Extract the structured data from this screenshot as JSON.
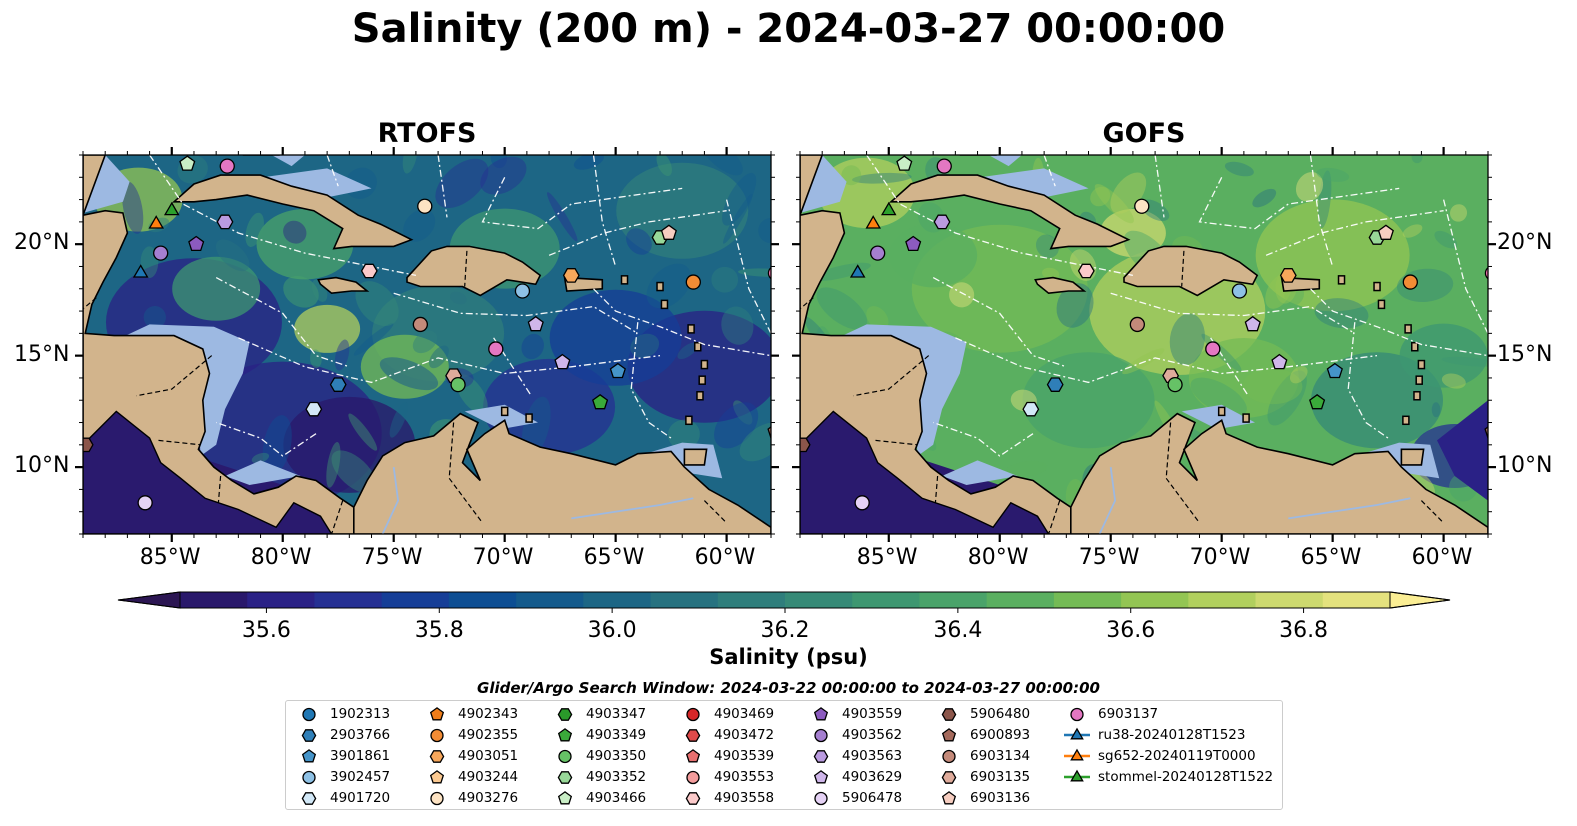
{
  "figure": {
    "title": "Salinity (200 m) - 2024-03-27 00:00:00",
    "panels": [
      {
        "title": "RTOFS",
        "model": "RTOFS"
      },
      {
        "title": "GOFS",
        "model": "GOFS"
      }
    ],
    "lat_ticks": [
      "10°N",
      "15°N",
      "20°N"
    ],
    "lon_ticks": [
      "85°W",
      "80°W",
      "75°W",
      "70°W",
      "65°W",
      "60°W"
    ],
    "colors": {
      "land": "#d2b48c",
      "shelf": "#9db9e2"
    }
  },
  "colorbar": {
    "label": "Salinity (psu)",
    "ticks": [
      "35.6",
      "35.8",
      "36.0",
      "36.2",
      "36.4",
      "36.6",
      "36.8"
    ],
    "range": [
      35.5,
      36.9
    ],
    "extend": "both",
    "colormap": "haline",
    "colors": [
      "#29186b",
      "#2a2186",
      "#253093",
      "#163e97",
      "#0d4e93",
      "#145a8c",
      "#1d6685",
      "#277280",
      "#2f7e7c",
      "#368a77",
      "#3e9771",
      "#4aa36a",
      "#5aaf60",
      "#74bb55",
      "#93c553",
      "#b1cf5e",
      "#cdd96f",
      "#e4e27e"
    ],
    "under_color": "#2c1653",
    "over_color": "#fbee94"
  },
  "legend": {
    "title": "Glider/Argo Search Window: 2024-03-22 00:00:00 to 2024-03-27 00:00:00",
    "entries": [
      {
        "label": "1902313",
        "marker": "circle",
        "color": "#1f77b4"
      },
      {
        "label": "2903766",
        "marker": "hexagon",
        "color": "#2f7fb8"
      },
      {
        "label": "3901861",
        "marker": "pentagon",
        "color": "#4594c9"
      },
      {
        "label": "3902457",
        "marker": "circle",
        "color": "#8ec1e5"
      },
      {
        "label": "4901720",
        "marker": "hexagon",
        "color": "#d2e8f7"
      },
      {
        "label": "4902343",
        "marker": "pentagon",
        "color": "#ef7d1a"
      },
      {
        "label": "4902355",
        "marker": "circle",
        "color": "#f28c35"
      },
      {
        "label": "4903051",
        "marker": "hexagon",
        "color": "#f7a75b"
      },
      {
        "label": "4903244",
        "marker": "pentagon",
        "color": "#fbc991"
      },
      {
        "label": "4903276",
        "marker": "circle",
        "color": "#fde3c3"
      },
      {
        "label": "4903347",
        "marker": "hexagon",
        "color": "#2a9a2a"
      },
      {
        "label": "4903349",
        "marker": "pentagon",
        "color": "#3aaa3a"
      },
      {
        "label": "4903350",
        "marker": "circle",
        "color": "#66c266"
      },
      {
        "label": "4903352",
        "marker": "hexagon",
        "color": "#98d898"
      },
      {
        "label": "4903466",
        "marker": "pentagon",
        "color": "#c9eec6"
      },
      {
        "label": "4903469",
        "marker": "circle",
        "color": "#d62728"
      },
      {
        "label": "4903472",
        "marker": "hexagon",
        "color": "#df4a4a"
      },
      {
        "label": "4903539",
        "marker": "pentagon",
        "color": "#e87070"
      },
      {
        "label": "4903553",
        "marker": "circle",
        "color": "#f39c9c"
      },
      {
        "label": "4903558",
        "marker": "hexagon",
        "color": "#fbcaca"
      },
      {
        "label": "4903559",
        "marker": "pentagon",
        "color": "#8c5bbf"
      },
      {
        "label": "4903562",
        "marker": "circle",
        "color": "#a57fd0"
      },
      {
        "label": "4903563",
        "marker": "hexagon",
        "color": "#ba9be0"
      },
      {
        "label": "4903629",
        "marker": "pentagon",
        "color": "#cfb6ea"
      },
      {
        "label": "5906478",
        "marker": "circle",
        "color": "#e5d2f5"
      },
      {
        "label": "5906480",
        "marker": "hexagon",
        "color": "#8c564b"
      },
      {
        "label": "6900893",
        "marker": "pentagon",
        "color": "#a56a5c"
      },
      {
        "label": "6903134",
        "marker": "circle",
        "color": "#c48a7a"
      },
      {
        "label": "6903135",
        "marker": "hexagon",
        "color": "#dfab9b"
      },
      {
        "label": "6903136",
        "marker": "pentagon",
        "color": "#f6cdc0"
      },
      {
        "label": "6903137",
        "marker": "circle",
        "color": "#e377c2"
      },
      {
        "label": "ru38-20240128T1523",
        "marker": "triangle-line",
        "color": "#1f77b4"
      },
      {
        "label": "sg652-20240119T0000",
        "marker": "triangle-line",
        "color": "#ff7f0e"
      },
      {
        "label": "stommel-20240128T1522",
        "marker": "triangle-line",
        "color": "#2ca02c"
      }
    ]
  },
  "observations": [
    {
      "label": "5906478",
      "lon": -86.2,
      "lat": 8.4
    },
    {
      "label": "5906480",
      "lon": -88.9,
      "lat": 11.0
    },
    {
      "label": "4903563",
      "lon": -82.6,
      "lat": 21.0
    },
    {
      "label": "4903559",
      "lon": -83.9,
      "lat": 20.0
    },
    {
      "label": "4903562",
      "lon": -85.5,
      "lat": 19.6
    },
    {
      "label": "ru38-20240128T1523",
      "lon": -86.4,
      "lat": 18.7
    },
    {
      "label": "sg652-20240119T0000",
      "lon": -85.7,
      "lat": 20.9
    },
    {
      "label": "stommel-20240128T1522",
      "lon": -85.0,
      "lat": 21.5
    },
    {
      "label": "4903466",
      "lon": -84.3,
      "lat": 23.6
    },
    {
      "label": "6903137",
      "lon": -82.5,
      "lat": 23.5
    },
    {
      "label": "4903276",
      "lon": -73.6,
      "lat": 21.7
    },
    {
      "label": "4903352",
      "lon": -63.0,
      "lat": 20.3
    },
    {
      "label": "6903136",
      "lon": -62.6,
      "lat": 20.5
    },
    {
      "label": "4903558",
      "lon": -76.1,
      "lat": 18.8
    },
    {
      "label": "4903051",
      "lon": -67.0,
      "lat": 18.6
    },
    {
      "label": "4902355",
      "lon": -61.5,
      "lat": 18.3
    },
    {
      "label": "6903137b",
      "lon": -57.8,
      "lat": 18.7
    },
    {
      "label": "3902457",
      "lon": -69.2,
      "lat": 17.9
    },
    {
      "label": "6903134",
      "lon": -73.8,
      "lat": 16.4
    },
    {
      "label": "4903629",
      "lon": -68.6,
      "lat": 16.4
    },
    {
      "label": "6903137",
      "lon": -70.4,
      "lat": 15.3
    },
    {
      "label": "4903629",
      "lon": -67.4,
      "lat": 14.7
    },
    {
      "label": "3901861",
      "lon": -64.9,
      "lat": 14.3
    },
    {
      "label": "6903135",
      "lon": -72.3,
      "lat": 14.1
    },
    {
      "label": "4903350",
      "lon": -72.1,
      "lat": 13.7
    },
    {
      "label": "2903766",
      "lon": -77.5,
      "lat": 13.7
    },
    {
      "label": "4903349",
      "lon": -65.7,
      "lat": 12.9
    },
    {
      "label": "4901720",
      "lon": -78.6,
      "lat": 12.6
    },
    {
      "label": "6900893",
      "lon": -57.8,
      "lat": 11.6
    }
  ]
}
